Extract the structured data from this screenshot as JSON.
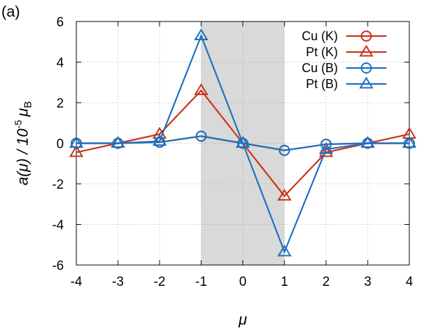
{
  "chart_data": {
    "type": "line",
    "panel_label": "(a)",
    "xlabel": "μ",
    "ylabel": {
      "prefix": "a(μ) / 10",
      "exponent": "-5",
      "unit_symbol": "μ",
      "unit_subscript": "B"
    },
    "xlim": [
      -4,
      4
    ],
    "ylim": [
      -6,
      6
    ],
    "x_ticks": [
      -4,
      -3,
      -2,
      -1,
      0,
      1,
      2,
      3,
      4
    ],
    "y_ticks": [
      -6,
      -4,
      -2,
      0,
      2,
      4,
      6
    ],
    "x_tick_labels": [
      "-4",
      "-3",
      "-2",
      "-1",
      "0",
      "1",
      "2",
      "3",
      "4"
    ],
    "y_tick_labels": [
      "-6",
      "-4",
      "-2",
      "0",
      "2",
      "4",
      "6"
    ],
    "grid": true,
    "shaded_region": {
      "x": [
        -1,
        1
      ],
      "color": "#d9d9d9"
    },
    "legend_position": "top-right",
    "x": [
      -4,
      -3,
      -2,
      -1,
      0,
      1,
      2,
      3,
      4
    ],
    "series": [
      {
        "name": "Cu (K)",
        "marker": "circle",
        "color": "#c8341a",
        "values": [
          0.0,
          0.0,
          0.05,
          0.35,
          0.0,
          -0.35,
          -0.05,
          0.0,
          0.0
        ]
      },
      {
        "name": "Pt (K)",
        "marker": "triangle",
        "color": "#c8341a",
        "values": [
          -0.45,
          0.0,
          0.45,
          2.6,
          0.0,
          -2.6,
          -0.45,
          0.0,
          0.45
        ]
      },
      {
        "name": "Cu (B)",
        "marker": "circle",
        "color": "#1f6fbf",
        "values": [
          0.0,
          0.0,
          0.05,
          0.35,
          0.0,
          -0.35,
          -0.05,
          0.0,
          0.0
        ]
      },
      {
        "name": "Pt (B)",
        "marker": "triangle",
        "color": "#1f6fbf",
        "values": [
          0.0,
          0.0,
          0.1,
          5.3,
          0.0,
          -5.35,
          -0.3,
          0.0,
          0.0
        ]
      }
    ]
  }
}
